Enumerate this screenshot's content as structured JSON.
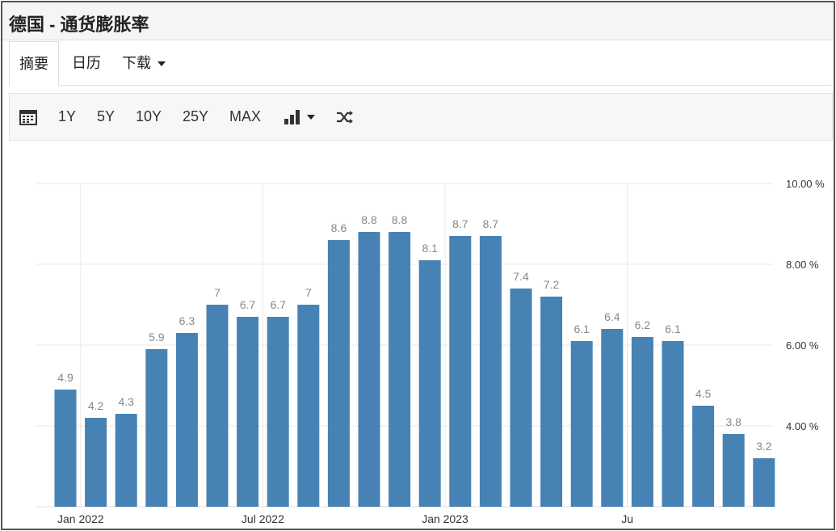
{
  "window": {
    "title": "德国 - 通货膨胀率"
  },
  "tabs": [
    {
      "label": "摘要",
      "active": true
    },
    {
      "label": "日历",
      "active": false
    },
    {
      "label": "下载",
      "active": false,
      "dropdown": true
    }
  ],
  "toolbar": {
    "calendar_icon": "calendar-icon",
    "ranges": [
      "1Y",
      "5Y",
      "10Y",
      "25Y",
      "MAX"
    ],
    "chart_type_icon": "bar-chart-icon",
    "compare_icon": "shuffle-icon"
  },
  "colors": {
    "bar": "#4682b4",
    "label": "#888888",
    "grid": "#e8e8e8"
  },
  "chart_data": {
    "type": "bar",
    "title": "",
    "xlabel": "",
    "ylabel": "",
    "ylim": [
      2.0,
      10.0
    ],
    "yticks": [
      4,
      6,
      8,
      10
    ],
    "ytick_labels": [
      "4.00 %",
      "6.00 %",
      "8.00 %",
      "10.00 %"
    ],
    "xtick_labels": [
      {
        "label": "Jan 2022",
        "index": 1
      },
      {
        "label": "Jul 2022",
        "index": 7
      },
      {
        "label": "Jan 2023",
        "index": 13
      },
      {
        "label": "Ju",
        "index": 19
      }
    ],
    "categories": [
      "2021-12",
      "2022-01",
      "2022-02",
      "2022-03",
      "2022-04",
      "2022-05",
      "2022-06",
      "2022-07",
      "2022-08",
      "2022-09",
      "2022-10",
      "2022-11",
      "2022-12",
      "2023-01",
      "2023-02",
      "2023-03",
      "2023-04",
      "2023-05",
      "2023-06",
      "2023-07",
      "2023-08",
      "2023-09",
      "2023-10",
      "2023-11"
    ],
    "values": [
      4.9,
      4.2,
      4.3,
      5.9,
      6.3,
      7,
      6.7,
      6.7,
      7,
      8.6,
      8.8,
      8.8,
      8.1,
      8.7,
      8.7,
      7.4,
      7.2,
      6.1,
      6.4,
      6.2,
      6.1,
      4.5,
      3.8,
      3.2
    ],
    "value_labels": [
      "4.9",
      "4.2",
      "4.3",
      "5.9",
      "6.3",
      "7",
      "6.7",
      "6.7",
      "7",
      "8.6",
      "8.8",
      "8.8",
      "8.1",
      "8.7",
      "8.7",
      "7.4",
      "7.2",
      "6.1",
      "6.4",
      "6.2",
      "6.1",
      "4.5",
      "3.8",
      "3.2"
    ],
    "grid": true,
    "yaxis_position": "right"
  }
}
